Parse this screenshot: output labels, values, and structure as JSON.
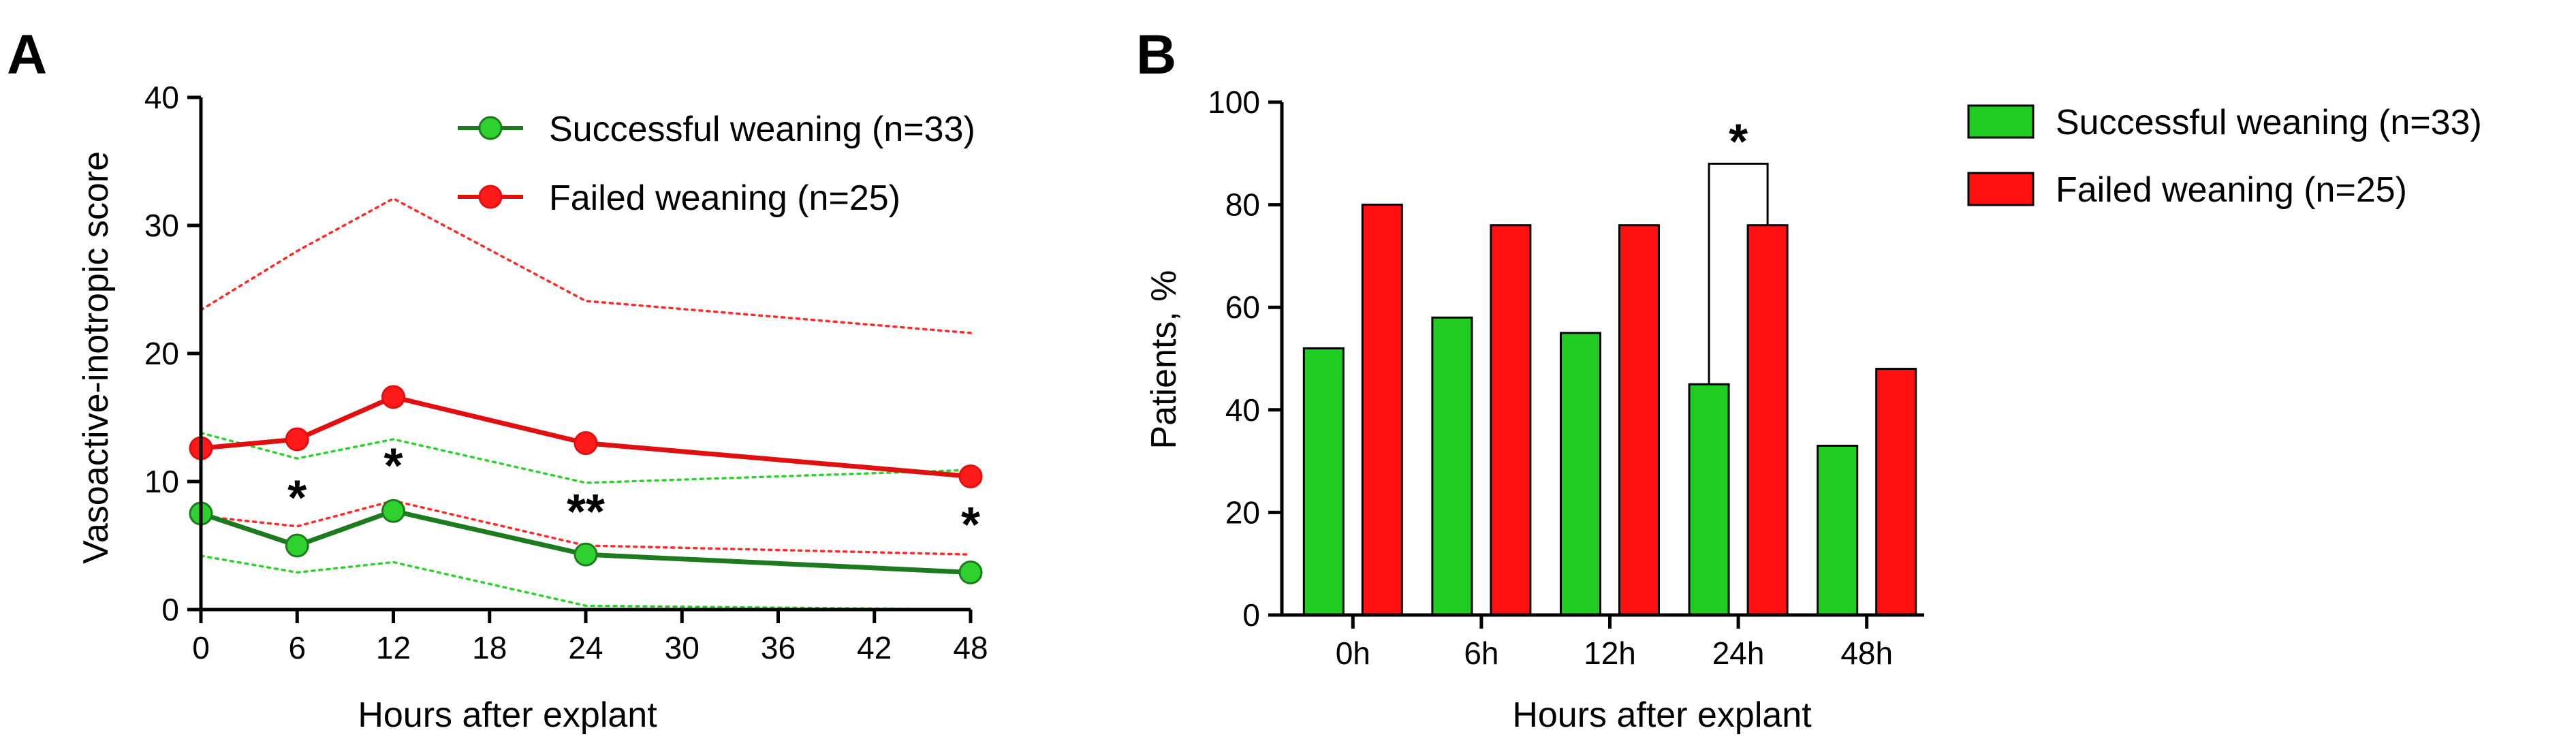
{
  "colors": {
    "successful_line": "#1e7a1e",
    "successful_marker": "#2fd12f",
    "successful_ci": "#2fd12f",
    "failed_line": "#e01010",
    "failed_marker": "#ff1a1a",
    "failed_ci": "#ff2a2a",
    "bar_successful": "#22cc22",
    "bar_failed": "#ff1111",
    "axis": "#000000"
  },
  "chart_data": [
    {
      "panel": "A",
      "type": "line",
      "title": "",
      "xlabel": "Hours after explant",
      "ylabel": "Vasoactive-inotropic score",
      "xlim": [
        0,
        48
      ],
      "ylim": [
        0,
        40
      ],
      "xticks": [
        0,
        6,
        12,
        18,
        24,
        30,
        36,
        42,
        48
      ],
      "xtick_labels": [
        "0",
        "6",
        "12",
        "18",
        "24",
        "30",
        "36",
        "42",
        "48"
      ],
      "yticks": [
        0,
        10,
        20,
        30,
        40
      ],
      "ytick_labels": [
        "0",
        "10",
        "20",
        "30",
        "40"
      ],
      "legend_position": "top-right",
      "series": [
        {
          "name": "Successful weaning (n=33)",
          "color_key": "successful",
          "x": [
            0,
            6,
            12,
            24,
            48
          ],
          "values": [
            7.5,
            5.0,
            7.7,
            4.3,
            2.9
          ],
          "ci_upper": [
            13.8,
            11.8,
            13.3,
            9.9,
            10.9
          ],
          "ci_lower": [
            4.2,
            2.9,
            3.7,
            0.3,
            0.0
          ]
        },
        {
          "name": "Failed weaning (n=25)",
          "color_key": "failed",
          "x": [
            0,
            6,
            12,
            24,
            48
          ],
          "values": [
            12.6,
            13.3,
            16.6,
            13.0,
            10.4
          ],
          "ci_upper": [
            23.4,
            28.0,
            32.1,
            24.1,
            21.6
          ],
          "ci_lower": [
            7.3,
            6.5,
            8.5,
            5.0,
            4.3
          ]
        }
      ],
      "annotations": [
        {
          "text": "*",
          "x": 6,
          "y": 8.8
        },
        {
          "text": "*",
          "x": 12,
          "y": 11.3
        },
        {
          "text": "**",
          "x": 24,
          "y": 7.7
        },
        {
          "text": "*",
          "x": 48,
          "y": 6.7
        }
      ]
    },
    {
      "panel": "B",
      "type": "bar",
      "title": "",
      "xlabel": "Hours after explant",
      "ylabel": "Patients, %",
      "ylim": [
        0,
        100
      ],
      "yticks": [
        0,
        20,
        40,
        60,
        80,
        100
      ],
      "ytick_labels": [
        "0",
        "20",
        "40",
        "60",
        "80",
        "100"
      ],
      "categories": [
        "0h",
        "6h",
        "12h",
        "24h",
        "48h"
      ],
      "legend_position": "top-right",
      "series": [
        {
          "name": "Successful weaning (n=33)",
          "color_key": "bar_successful",
          "values": [
            52,
            58,
            55,
            45,
            33
          ]
        },
        {
          "name": "Failed weaning (n=25)",
          "color_key": "bar_failed",
          "values": [
            80,
            76,
            76,
            76,
            48
          ]
        }
      ],
      "annotations": [
        {
          "text": "*",
          "category": "24h",
          "bracket_y": 88
        }
      ]
    }
  ]
}
